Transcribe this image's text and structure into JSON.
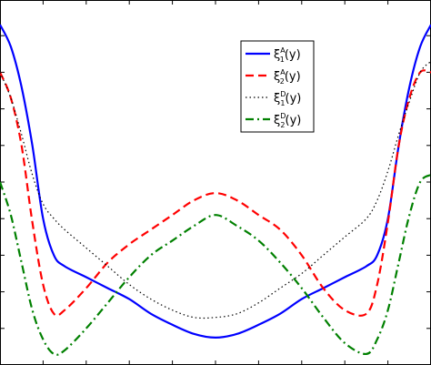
{
  "chart_data": {
    "type": "line",
    "title": "",
    "xlabel": "",
    "ylabel": "",
    "xlim": [
      -1,
      1
    ],
    "ylim": [
      0,
      1
    ],
    "grid": false,
    "legend_placement": "top-right",
    "series": [
      {
        "name": "ξ1A(y)",
        "legend": {
          "base": "ξ",
          "sub": "1",
          "sup": "A",
          "arg": "(y)"
        },
        "color": "#0000ff",
        "style": "solid",
        "x": [
          -1,
          -0.95,
          -0.9,
          -0.85,
          -0.8,
          -0.75,
          -0.7,
          -0.6,
          -0.5,
          -0.4,
          -0.3,
          -0.2,
          -0.1,
          0,
          0.1,
          0.2,
          0.3,
          0.4,
          0.5,
          0.6,
          0.7,
          0.75,
          0.8,
          0.85,
          0.9,
          0.95,
          1
        ],
        "values": [
          0.93,
          0.87,
          0.76,
          0.6,
          0.4,
          0.3,
          0.27,
          0.24,
          0.21,
          0.18,
          0.14,
          0.11,
          0.085,
          0.075,
          0.085,
          0.11,
          0.14,
          0.18,
          0.21,
          0.24,
          0.27,
          0.3,
          0.4,
          0.6,
          0.76,
          0.87,
          0.93
        ]
      },
      {
        "name": "ξ2A(y)",
        "legend": {
          "base": "ξ",
          "sub": "2",
          "sup": "A",
          "arg": "(y)"
        },
        "color": "#ff0000",
        "style": "dashed",
        "x": [
          -1,
          -0.95,
          -0.9,
          -0.85,
          -0.8,
          -0.75,
          -0.7,
          -0.6,
          -0.5,
          -0.4,
          -0.3,
          -0.2,
          -0.1,
          0,
          0.1,
          0.2,
          0.3,
          0.4,
          0.5,
          0.6,
          0.7,
          0.75,
          0.8,
          0.85,
          0.9,
          0.95,
          1
        ],
        "values": [
          0.8,
          0.73,
          0.6,
          0.39,
          0.22,
          0.14,
          0.15,
          0.21,
          0.28,
          0.33,
          0.37,
          0.41,
          0.45,
          0.47,
          0.45,
          0.41,
          0.37,
          0.3,
          0.21,
          0.15,
          0.14,
          0.22,
          0.39,
          0.6,
          0.73,
          0.8,
          0.8
        ]
      },
      {
        "name": "ξ1D(y)",
        "legend": {
          "base": "ξ",
          "sub": "1",
          "sup": "D",
          "arg": "(y)"
        },
        "color": "#000000",
        "style": "dotted",
        "x": [
          -1,
          -0.95,
          -0.9,
          -0.85,
          -0.8,
          -0.75,
          -0.7,
          -0.6,
          -0.5,
          -0.4,
          -0.3,
          -0.2,
          -0.1,
          0,
          0.1,
          0.2,
          0.3,
          0.4,
          0.5,
          0.6,
          0.7,
          0.75,
          0.8,
          0.85,
          0.9,
          0.95,
          1
        ],
        "values": [
          0.8,
          0.73,
          0.63,
          0.52,
          0.44,
          0.4,
          0.37,
          0.32,
          0.27,
          0.22,
          0.18,
          0.15,
          0.13,
          0.13,
          0.14,
          0.17,
          0.21,
          0.25,
          0.3,
          0.35,
          0.4,
          0.45,
          0.53,
          0.63,
          0.72,
          0.8,
          0.83
        ]
      },
      {
        "name": "ξ2D(y)",
        "legend": {
          "base": "ξ",
          "sub": "2",
          "sup": "D",
          "arg": "(y)"
        },
        "color": "#008000",
        "style": "dashdot",
        "x": [
          -1,
          -0.95,
          -0.9,
          -0.85,
          -0.8,
          -0.75,
          -0.7,
          -0.6,
          -0.5,
          -0.4,
          -0.3,
          -0.2,
          -0.1,
          0,
          0.1,
          0.2,
          0.3,
          0.4,
          0.5,
          0.6,
          0.7,
          0.75,
          0.8,
          0.85,
          0.9,
          0.95,
          1
        ],
        "values": [
          0.5,
          0.41,
          0.28,
          0.15,
          0.07,
          0.03,
          0.04,
          0.1,
          0.17,
          0.24,
          0.3,
          0.34,
          0.38,
          0.41,
          0.38,
          0.34,
          0.28,
          0.21,
          0.13,
          0.06,
          0.03,
          0.07,
          0.15,
          0.28,
          0.41,
          0.5,
          0.52
        ]
      }
    ]
  }
}
